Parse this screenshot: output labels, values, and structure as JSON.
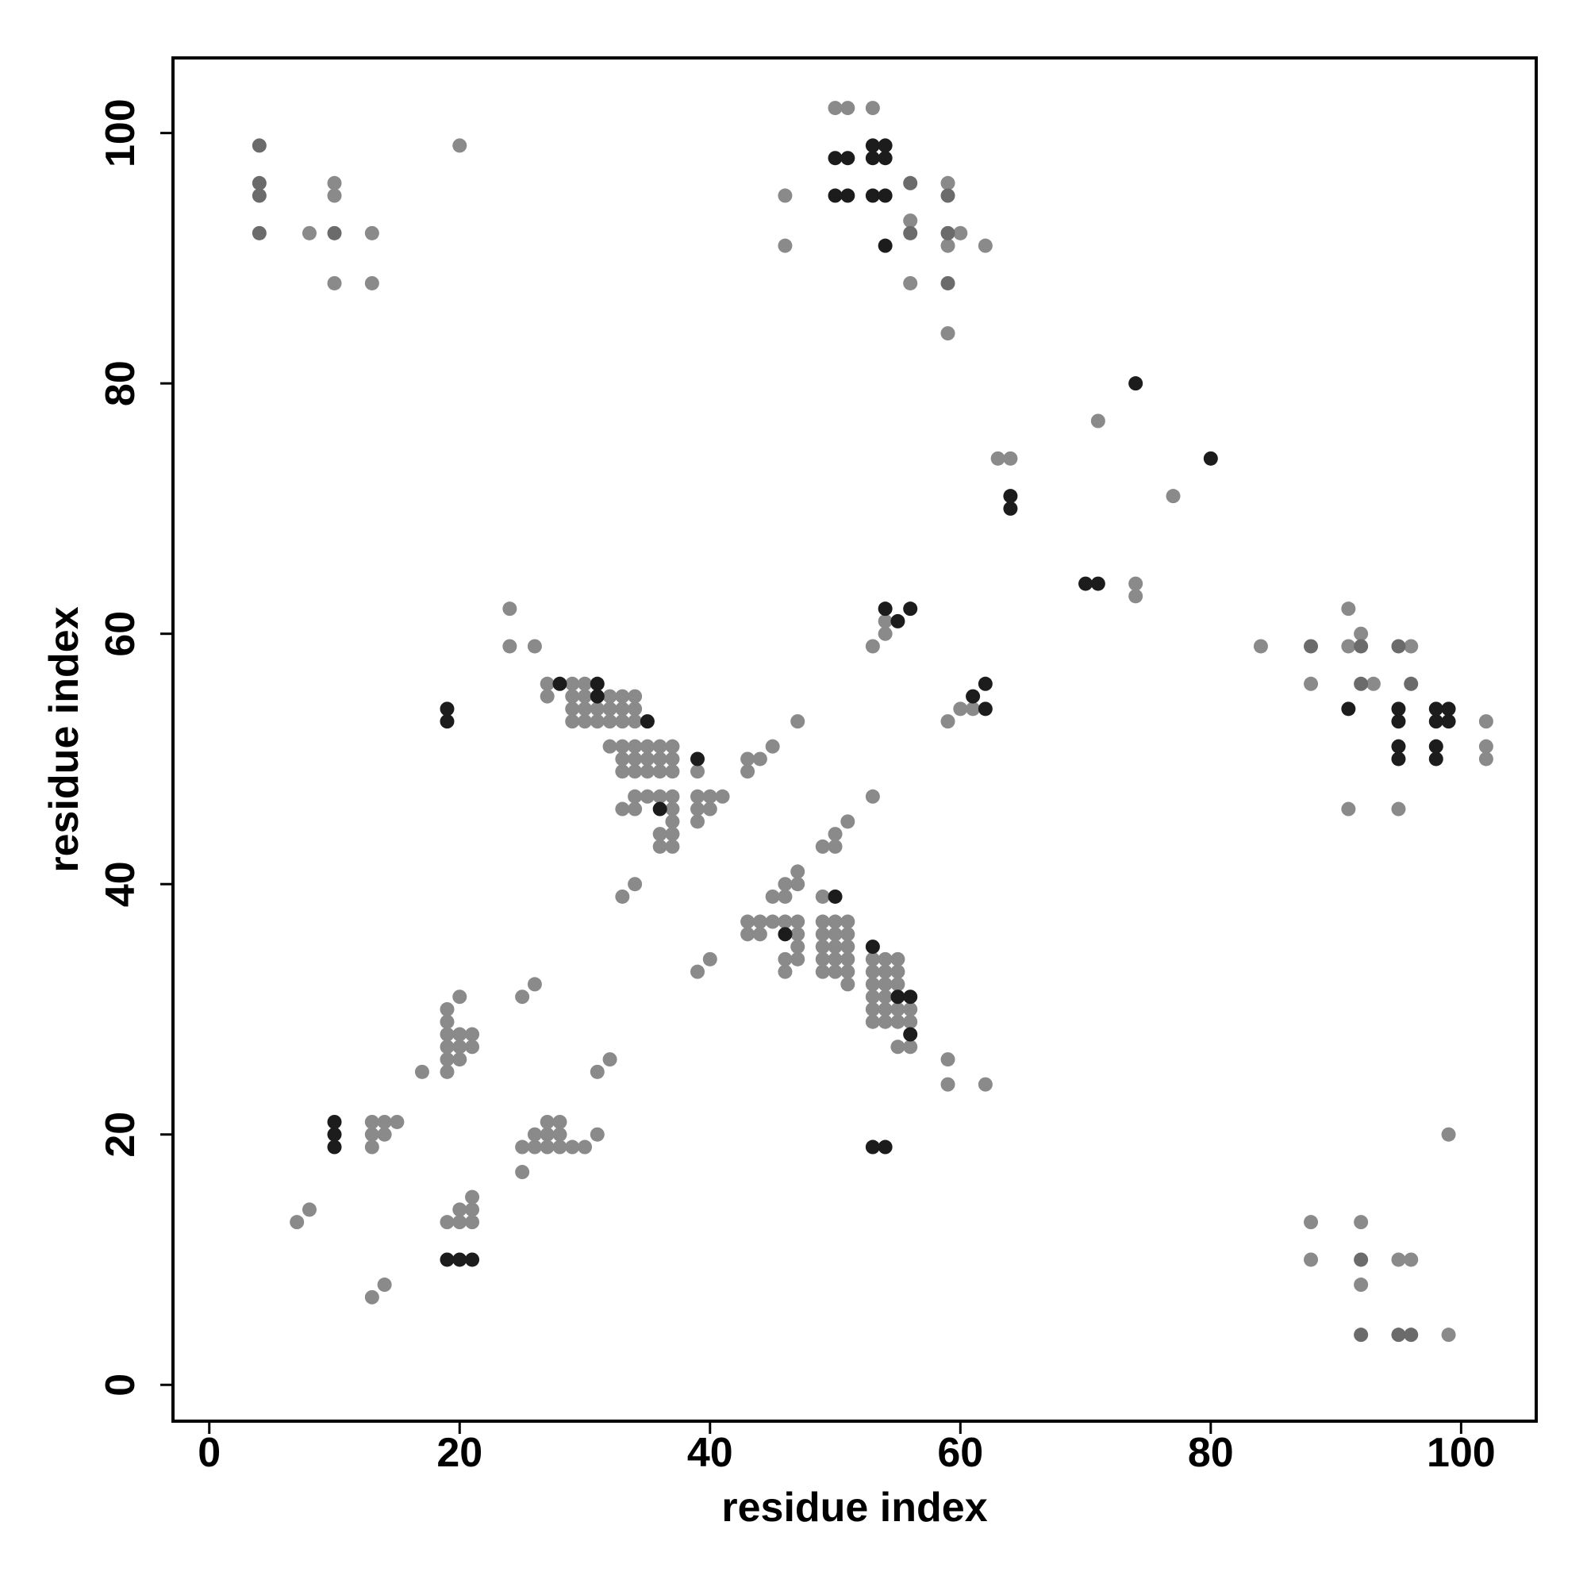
{
  "chart_data": {
    "type": "scatter",
    "x_label": "residue index",
    "y_label": "residue index",
    "xlim": [
      -2.9,
      106
    ],
    "ylim": [
      -2.9,
      106
    ],
    "xticks": [
      0,
      20,
      40,
      60,
      80,
      100
    ],
    "yticks": [
      0,
      20,
      40,
      60,
      80,
      100
    ],
    "grid": false,
    "series": [
      {
        "color": "#8a8a8a",
        "x": [
          8,
          10,
          10,
          10,
          13,
          13,
          20,
          50,
          51,
          53,
          46,
          46,
          56,
          56,
          59,
          59,
          60,
          62,
          59,
          71,
          63,
          64,
          77,
          74,
          74,
          54,
          54,
          53,
          60,
          61,
          59,
          84,
          88,
          91,
          91,
          92,
          93,
          91,
          96,
          95,
          102,
          102,
          102,
          88,
          88,
          92,
          92,
          95,
          96,
          99,
          99,
          13,
          14,
          15,
          13,
          14,
          13,
          7,
          8,
          13,
          14,
          19,
          20,
          21,
          20,
          21,
          21,
          17,
          19,
          19,
          20,
          19,
          20,
          21,
          19,
          20,
          21,
          19,
          19,
          20,
          25,
          26,
          25,
          25,
          26,
          27,
          28,
          29,
          30,
          26,
          27,
          28,
          27,
          28,
          31,
          31,
          32,
          24,
          24,
          26,
          27,
          29,
          30,
          27,
          29,
          30,
          32,
          33,
          34,
          29,
          30,
          31,
          32,
          33,
          34,
          29,
          30,
          31,
          32,
          33,
          34,
          32,
          33,
          34,
          35,
          36,
          37,
          33,
          34,
          35,
          36,
          37,
          33,
          34,
          35,
          36,
          37,
          39,
          34,
          35,
          36,
          37,
          39,
          40,
          41,
          33,
          34,
          37,
          39,
          40,
          37,
          39,
          36,
          37,
          36,
          37,
          33,
          34,
          43,
          43,
          44,
          45,
          47,
          39,
          40,
          47,
          46,
          47,
          45,
          46,
          49,
          43,
          44,
          45,
          46,
          47,
          49,
          50,
          51,
          43,
          44,
          47,
          49,
          50,
          51,
          47,
          49,
          50,
          51,
          46,
          47,
          49,
          50,
          51,
          53,
          54,
          55,
          46,
          49,
          50,
          51,
          53,
          54,
          55,
          51,
          53,
          54,
          55,
          53,
          54,
          53,
          54,
          55,
          56,
          53,
          54,
          55,
          56,
          55,
          56,
          49,
          50,
          50,
          51,
          53,
          59,
          59,
          62
        ],
        "values": [
          92,
          96,
          95,
          88,
          92,
          88,
          99,
          102,
          102,
          102,
          95,
          91,
          93,
          88,
          96,
          91,
          92,
          91,
          84,
          77,
          74,
          74,
          71,
          64,
          63,
          61,
          60,
          59,
          54,
          54,
          53,
          59,
          56,
          62,
          59,
          60,
          56,
          46,
          59,
          46,
          53,
          51,
          50,
          13,
          10,
          13,
          8,
          10,
          10,
          4,
          20,
          21,
          21,
          21,
          20,
          20,
          19,
          13,
          14,
          7,
          8,
          13,
          13,
          13,
          14,
          14,
          15,
          25,
          25,
          26,
          26,
          27,
          27,
          27,
          28,
          28,
          28,
          29,
          30,
          31,
          31,
          32,
          17,
          19,
          19,
          19,
          19,
          19,
          19,
          20,
          20,
          20,
          21,
          21,
          20,
          25,
          26,
          62,
          59,
          59,
          56,
          56,
          56,
          55,
          55,
          55,
          55,
          55,
          55,
          54,
          54,
          54,
          54,
          54,
          54,
          53,
          53,
          53,
          53,
          53,
          53,
          51,
          51,
          51,
          51,
          51,
          51,
          50,
          50,
          50,
          50,
          50,
          49,
          49,
          49,
          49,
          49,
          49,
          47,
          47,
          47,
          47,
          47,
          47,
          47,
          46,
          46,
          46,
          46,
          46,
          45,
          45,
          44,
          44,
          43,
          43,
          39,
          40,
          49,
          50,
          50,
          51,
          53,
          33,
          34,
          41,
          40,
          40,
          39,
          39,
          39,
          37,
          37,
          37,
          37,
          37,
          37,
          37,
          37,
          36,
          36,
          36,
          36,
          36,
          36,
          35,
          35,
          35,
          35,
          34,
          34,
          34,
          34,
          34,
          34,
          34,
          34,
          33,
          33,
          33,
          33,
          33,
          33,
          33,
          32,
          32,
          32,
          32,
          31,
          31,
          30,
          30,
          30,
          30,
          29,
          29,
          29,
          29,
          27,
          27,
          43,
          43,
          44,
          45,
          47,
          26,
          24,
          24
        ]
      },
      {
        "color": "#6b6b6b",
        "x": [
          4,
          4,
          4,
          4,
          10,
          56,
          56,
          59,
          59,
          59,
          88,
          92,
          92,
          95,
          96,
          92,
          92,
          95,
          96
        ],
        "values": [
          99,
          96,
          95,
          92,
          92,
          96,
          92,
          95,
          92,
          88,
          59,
          59,
          56,
          59,
          56,
          10,
          4,
          4,
          4
        ]
      },
      {
        "color": "#1c1c1c",
        "x": [
          50,
          51,
          53,
          54,
          53,
          54,
          50,
          51,
          53,
          54,
          54,
          74,
          80,
          64,
          64,
          70,
          71,
          54,
          56,
          55,
          61,
          62,
          62,
          91,
          95,
          95,
          95,
          95,
          98,
          99,
          98,
          99,
          98,
          98,
          19,
          19,
          10,
          10,
          10,
          19,
          20,
          21,
          28,
          31,
          31,
          35,
          39,
          36,
          50,
          46,
          53,
          55,
          56,
          56,
          53,
          54
        ],
        "values": [
          98,
          98,
          99,
          99,
          98,
          98,
          95,
          95,
          95,
          95,
          91,
          80,
          74,
          71,
          70,
          64,
          64,
          62,
          62,
          61,
          55,
          56,
          54,
          54,
          54,
          53,
          51,
          50,
          54,
          54,
          53,
          53,
          51,
          50,
          54,
          53,
          21,
          20,
          19,
          10,
          10,
          10,
          56,
          56,
          55,
          53,
          50,
          46,
          39,
          36,
          35,
          31,
          31,
          28,
          19,
          19
        ]
      }
    ]
  }
}
